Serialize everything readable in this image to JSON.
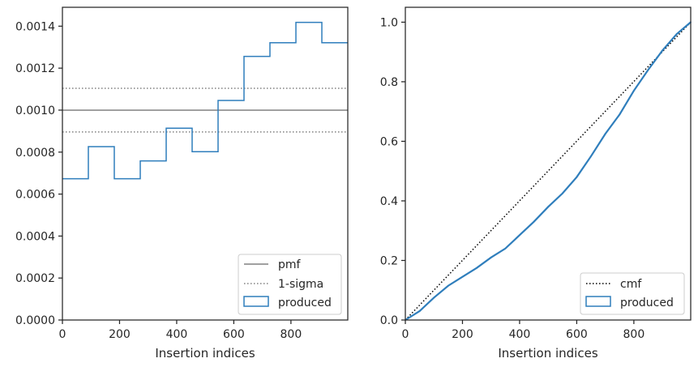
{
  "chart_data": [
    {
      "type": "histogram-step",
      "xlabel": "Insertion indices",
      "ylabel": "",
      "xlim": [
        0,
        999
      ],
      "ylim": [
        0,
        0.00149
      ],
      "xticks": [
        0,
        200,
        400,
        600,
        800
      ],
      "xtick_labels": [
        "0",
        "200",
        "400",
        "600",
        "800"
      ],
      "yticks": [
        0,
        0.0002,
        0.0004,
        0.0006,
        0.0008,
        0.001,
        0.0012,
        0.0014
      ],
      "ytick_labels": [
        "0.0000",
        "0.0002",
        "0.0004",
        "0.0006",
        "0.0008",
        "0.0010",
        "0.0012",
        "0.0014"
      ],
      "pmf": 0.001,
      "one_sigma": [
        0.000896,
        0.001104
      ],
      "bin_edges": [
        0,
        90.8,
        181.6,
        272.5,
        363.3,
        454.1,
        544.9,
        635.7,
        726.5,
        817.4,
        908.2,
        999
      ],
      "bin_values": [
        0.000673,
        0.000826,
        0.000673,
        0.000758,
        0.000914,
        0.000802,
        0.001046,
        0.001256,
        0.001321,
        0.001418,
        0.001321
      ],
      "legend": [
        "pmf",
        "1-sigma",
        "produced"
      ],
      "legend_loc": "lower right",
      "colors": {
        "pmf": "#808080",
        "sigma": "#808080",
        "produced": "#2f7ebc"
      }
    },
    {
      "type": "line",
      "xlabel": "Insertion indices",
      "ylabel": "",
      "xlim": [
        0,
        999
      ],
      "ylim": [
        0,
        1.05
      ],
      "xticks": [
        0,
        200,
        400,
        600,
        800
      ],
      "xtick_labels": [
        "0",
        "200",
        "400",
        "600",
        "800"
      ],
      "yticks": [
        0,
        0.2,
        0.4,
        0.6,
        0.8,
        1.0
      ],
      "ytick_labels": [
        "0.0",
        "0.2",
        "0.4",
        "0.6",
        "0.8",
        "1.0"
      ],
      "series": [
        {
          "name": "cmf",
          "x": [
            0,
            999
          ],
          "y": [
            0,
            1.0
          ],
          "style": "dotted",
          "color": "#000000"
        },
        {
          "name": "produced",
          "x": [
            0,
            50,
            100,
            150,
            200,
            250,
            300,
            350,
            400,
            450,
            500,
            550,
            600,
            650,
            700,
            750,
            800,
            850,
            900,
            950,
            999
          ],
          "y": [
            0,
            0.03,
            0.075,
            0.115,
            0.145,
            0.175,
            0.21,
            0.24,
            0.285,
            0.33,
            0.38,
            0.425,
            0.48,
            0.55,
            0.625,
            0.69,
            0.77,
            0.84,
            0.905,
            0.96,
            1.0
          ],
          "style": "solid",
          "color": "#2f7ebc"
        }
      ],
      "legend": [
        "cmf",
        "produced"
      ],
      "legend_loc": "lower right"
    }
  ]
}
